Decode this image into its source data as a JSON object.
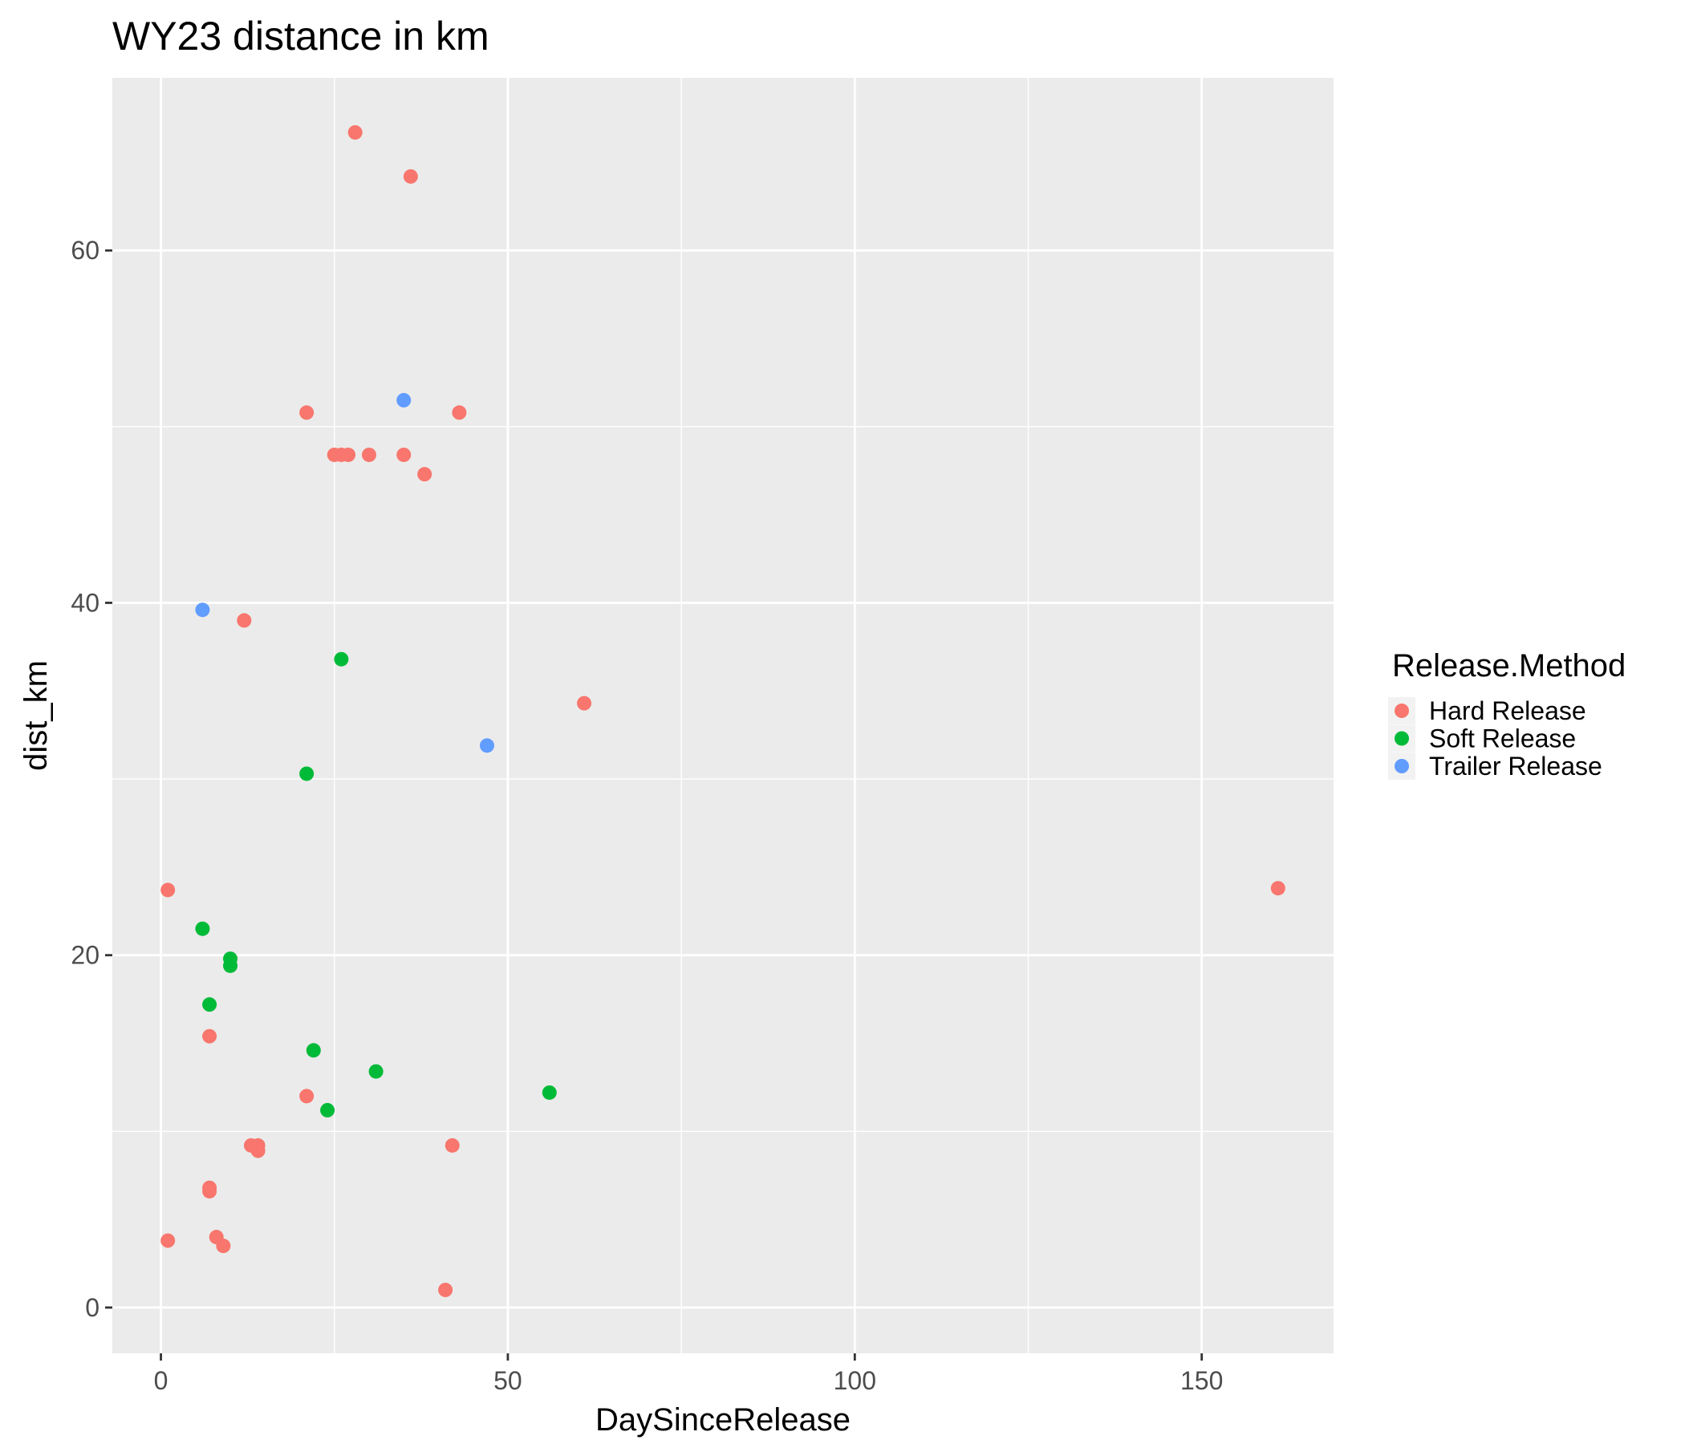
{
  "chart_data": {
    "type": "scatter",
    "title": "WY23 distance in km",
    "xlabel": "DaySinceRelease",
    "ylabel": "dist_km",
    "xlim": [
      -7,
      169
    ],
    "ylim": [
      -2.6,
      69.8
    ],
    "x_ticks": [
      0,
      50,
      100,
      150
    ],
    "y_ticks": [
      0,
      20,
      40,
      60
    ],
    "grid": true,
    "legend": {
      "title": "Release.Method",
      "position": "right"
    },
    "series": [
      {
        "name": "Hard Release",
        "color": "#F8766D",
        "points": [
          [
            28,
            66.7
          ],
          [
            36,
            64.2
          ],
          [
            21,
            50.8
          ],
          [
            43,
            50.8
          ],
          [
            25,
            48.4
          ],
          [
            26,
            48.4
          ],
          [
            27,
            48.4
          ],
          [
            30,
            48.4
          ],
          [
            35,
            48.4
          ],
          [
            38,
            47.3
          ],
          [
            12,
            39.0
          ],
          [
            61,
            34.3
          ],
          [
            1,
            23.7
          ],
          [
            161,
            23.8
          ],
          [
            7,
            15.4
          ],
          [
            21,
            12.0
          ],
          [
            13,
            9.2
          ],
          [
            14,
            9.2
          ],
          [
            14,
            8.9
          ],
          [
            42,
            9.2
          ],
          [
            7,
            6.6
          ],
          [
            7,
            6.8
          ],
          [
            8,
            4.0
          ],
          [
            1,
            3.8
          ],
          [
            9,
            3.5
          ],
          [
            41,
            1.0
          ]
        ]
      },
      {
        "name": "Soft Release",
        "color": "#00BA38",
        "points": [
          [
            26,
            36.8
          ],
          [
            21,
            30.3
          ],
          [
            6,
            21.5
          ],
          [
            10,
            19.8
          ],
          [
            10,
            19.4
          ],
          [
            7,
            17.2
          ],
          [
            22,
            14.6
          ],
          [
            31,
            13.4
          ],
          [
            56,
            12.2
          ],
          [
            24,
            11.2
          ]
        ]
      },
      {
        "name": "Trailer Release",
        "color": "#619CFF",
        "points": [
          [
            35,
            51.5
          ],
          [
            6,
            39.6
          ],
          [
            47,
            31.9
          ]
        ]
      }
    ]
  }
}
